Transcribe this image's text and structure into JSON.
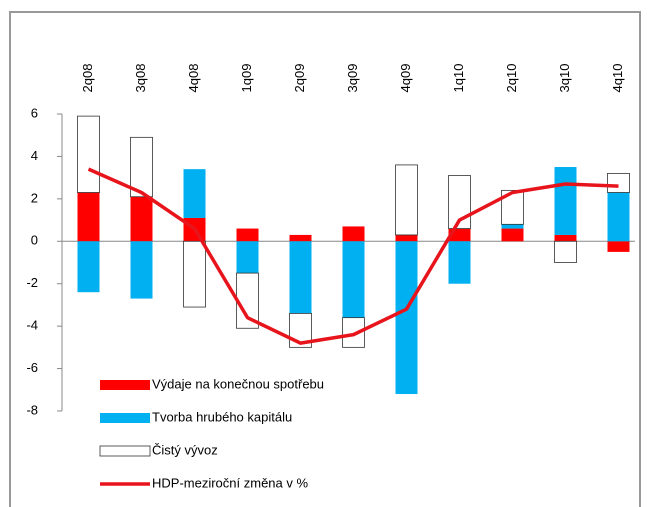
{
  "chart_data": {
    "type": "bar",
    "categories": [
      "2q08",
      "3q08",
      "4q08",
      "1q09",
      "2q09",
      "3q09",
      "4q09",
      "1q10",
      "2q10",
      "3q10",
      "4q10"
    ],
    "series": [
      {
        "name": "Výdaje na konečnou spotřebu",
        "color": "#ff0000",
        "values": [
          2.3,
          2.1,
          1.1,
          0.6,
          0.3,
          0.7,
          0.3,
          0.6,
          0.6,
          0.3,
          -0.5
        ]
      },
      {
        "name": "Tvorba hrubého kapitálu",
        "color": "#00b0f0",
        "values": [
          -2.4,
          -2.7,
          2.3,
          -1.5,
          -3.4,
          -3.6,
          -7.2,
          -2.0,
          0.2,
          3.2,
          2.3
        ]
      },
      {
        "name": "Čistý vývoz",
        "color": "#ffffff",
        "values": [
          3.6,
          2.8,
          -3.1,
          -2.6,
          -1.6,
          -1.4,
          3.3,
          2.5,
          1.6,
          -1.0,
          0.9
        ]
      },
      {
        "name": "HDP-meziroční změna v %",
        "color": "#e8141c",
        "type": "line",
        "values": [
          3.4,
          2.3,
          0.6,
          -3.6,
          -4.8,
          -4.4,
          -3.2,
          1.0,
          2.3,
          2.7,
          2.6
        ]
      }
    ],
    "stacked": true,
    "ylim": [
      -8,
      6
    ],
    "yticks": [
      -8,
      -6,
      -4,
      -2,
      0,
      2,
      4,
      6
    ],
    "legend": "bottom-left"
  }
}
